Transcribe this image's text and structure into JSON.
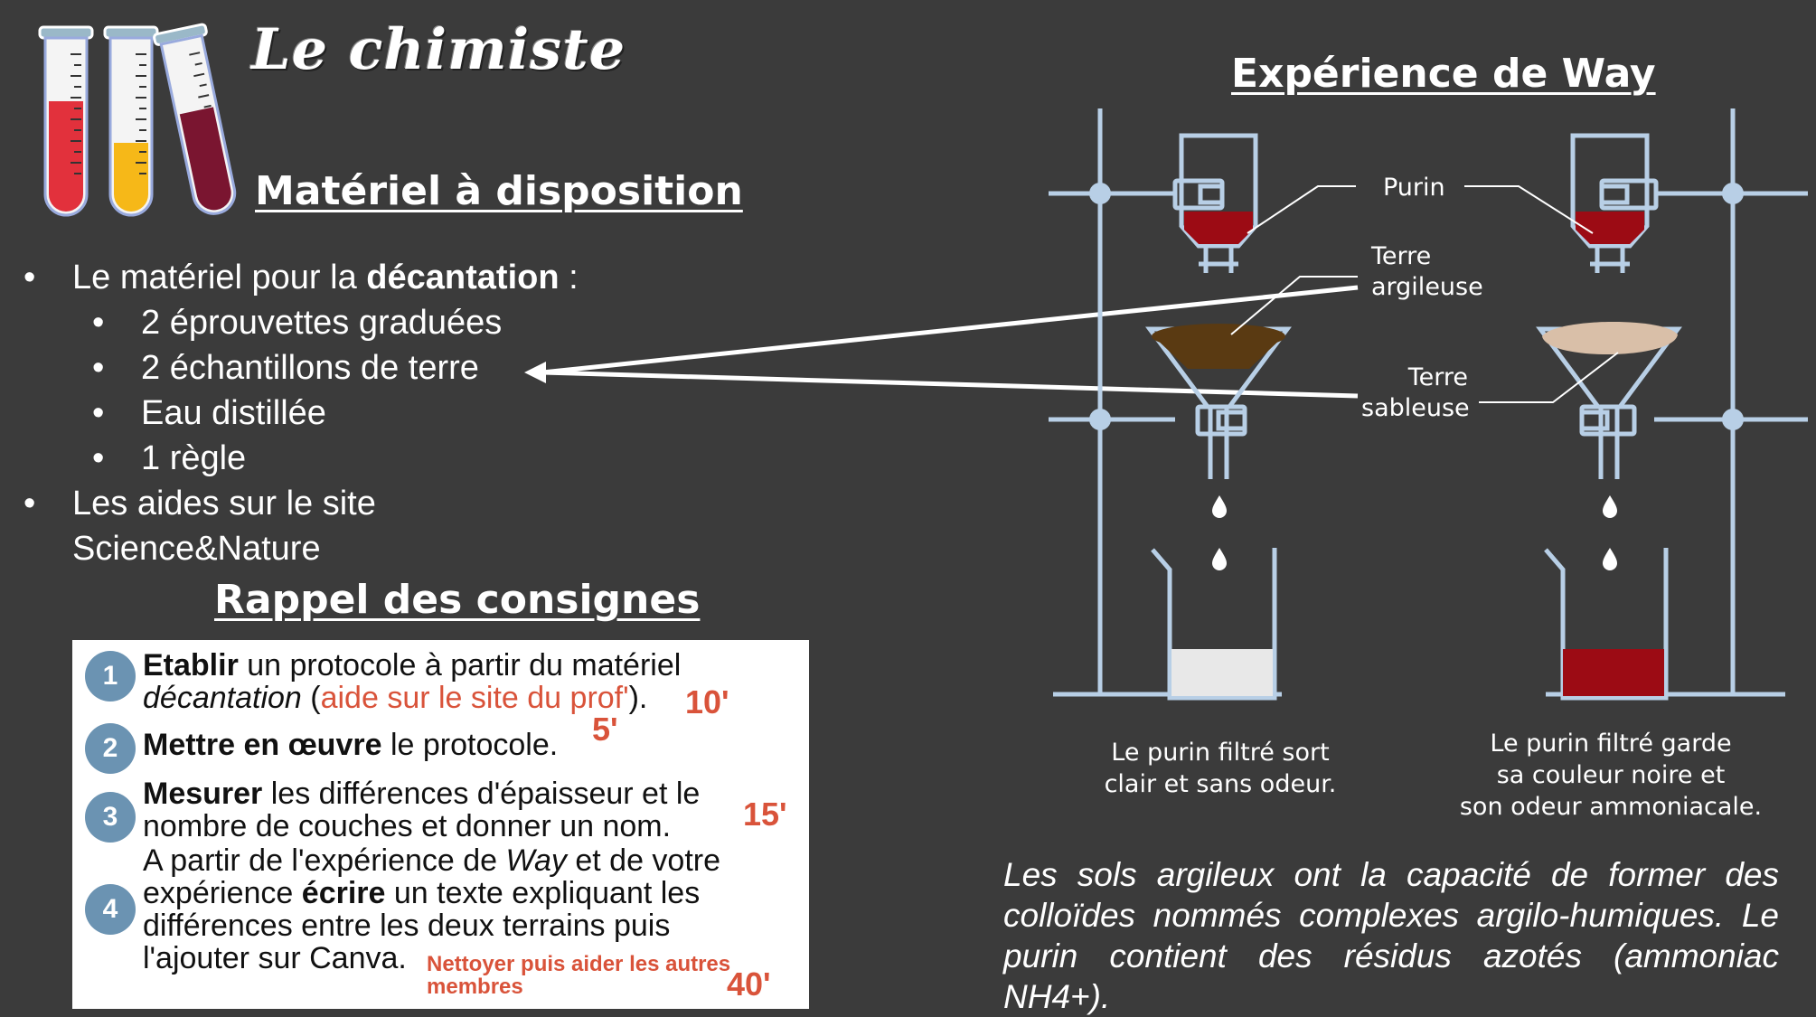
{
  "header": {
    "title": "Le chimiste"
  },
  "materiel": {
    "heading": "Matériel à disposition",
    "item1_prefix": "Le matériel pour la ",
    "item1_bold": "décantation",
    "item1_suffix": " :",
    "subitems": [
      "2 éprouvettes graduées",
      "2 échantillons de terre",
      "Eau distillée",
      "1 règle"
    ],
    "item2_line1": "Les aides sur le site",
    "item2_line2": "Science&Nature",
    "bullet": "•"
  },
  "rappel": {
    "heading": "Rappel des consignes",
    "steps": [
      {
        "num": "1",
        "bold": "Etablir",
        "text": " un protocole à partir du matériel",
        "line2_italic": "décantation",
        "line2_open": " (",
        "line2_link": "aide sur le site du prof'",
        "line2_close": ").",
        "time": "10'"
      },
      {
        "num": "2",
        "bold": "Mettre en œuvre",
        "text": " le protocole.",
        "time": "5'"
      },
      {
        "num": "3",
        "bold": "Mesurer",
        "text": " les différences d'épaisseur et le",
        "line2": "nombre de couches et donner un nom.",
        "time": "15'"
      },
      {
        "num": "4",
        "line1_a": "A  partir de l'expérience de ",
        "line1_i": "Way",
        "line1_b": " et de votre",
        "line2_a": "expérience ",
        "line2_bold": "écrire",
        "line2_b": " un texte expliquant les",
        "line3": "différences entre les deux terrains puis",
        "line4": "l'ajouter sur Canva.",
        "note_line1": "Nettoyer puis aider les autres",
        "note_line2": "membres",
        "time": "40'"
      }
    ]
  },
  "way": {
    "heading": "Expérience de Way",
    "label_purin": "Purin",
    "label_argile_1": "Terre",
    "label_argile_2": "argileuse",
    "label_sable_1": "Terre",
    "label_sable_2": "sableuse",
    "caption_left": [
      "Le purin filtré sort",
      "clair et sans odeur."
    ],
    "caption_right": [
      "Le purin filtré garde",
      "sa couleur noire et",
      "son odeur ammoniacale."
    ],
    "conclusion_lines": [
      "Les sols argileux ont la capacité de former des",
      "colloïdes nommés complexes argilo-humiques. Le",
      "purin contient des résidus azotés (ammoniac NH4+)."
    ]
  },
  "colors": {
    "background": "#3b3b3b",
    "purin": "#9c0b14",
    "clay": "#5a3a12",
    "sand": "#d9bfa8",
    "clear_water": "#e8e8e8",
    "stand": "#b8cfe6",
    "badge": "#6b93b2",
    "accent": "#d9533a"
  },
  "icons": [
    "test-tube-red-icon",
    "test-tube-yellow-icon",
    "test-tube-burgundy-icon"
  ]
}
